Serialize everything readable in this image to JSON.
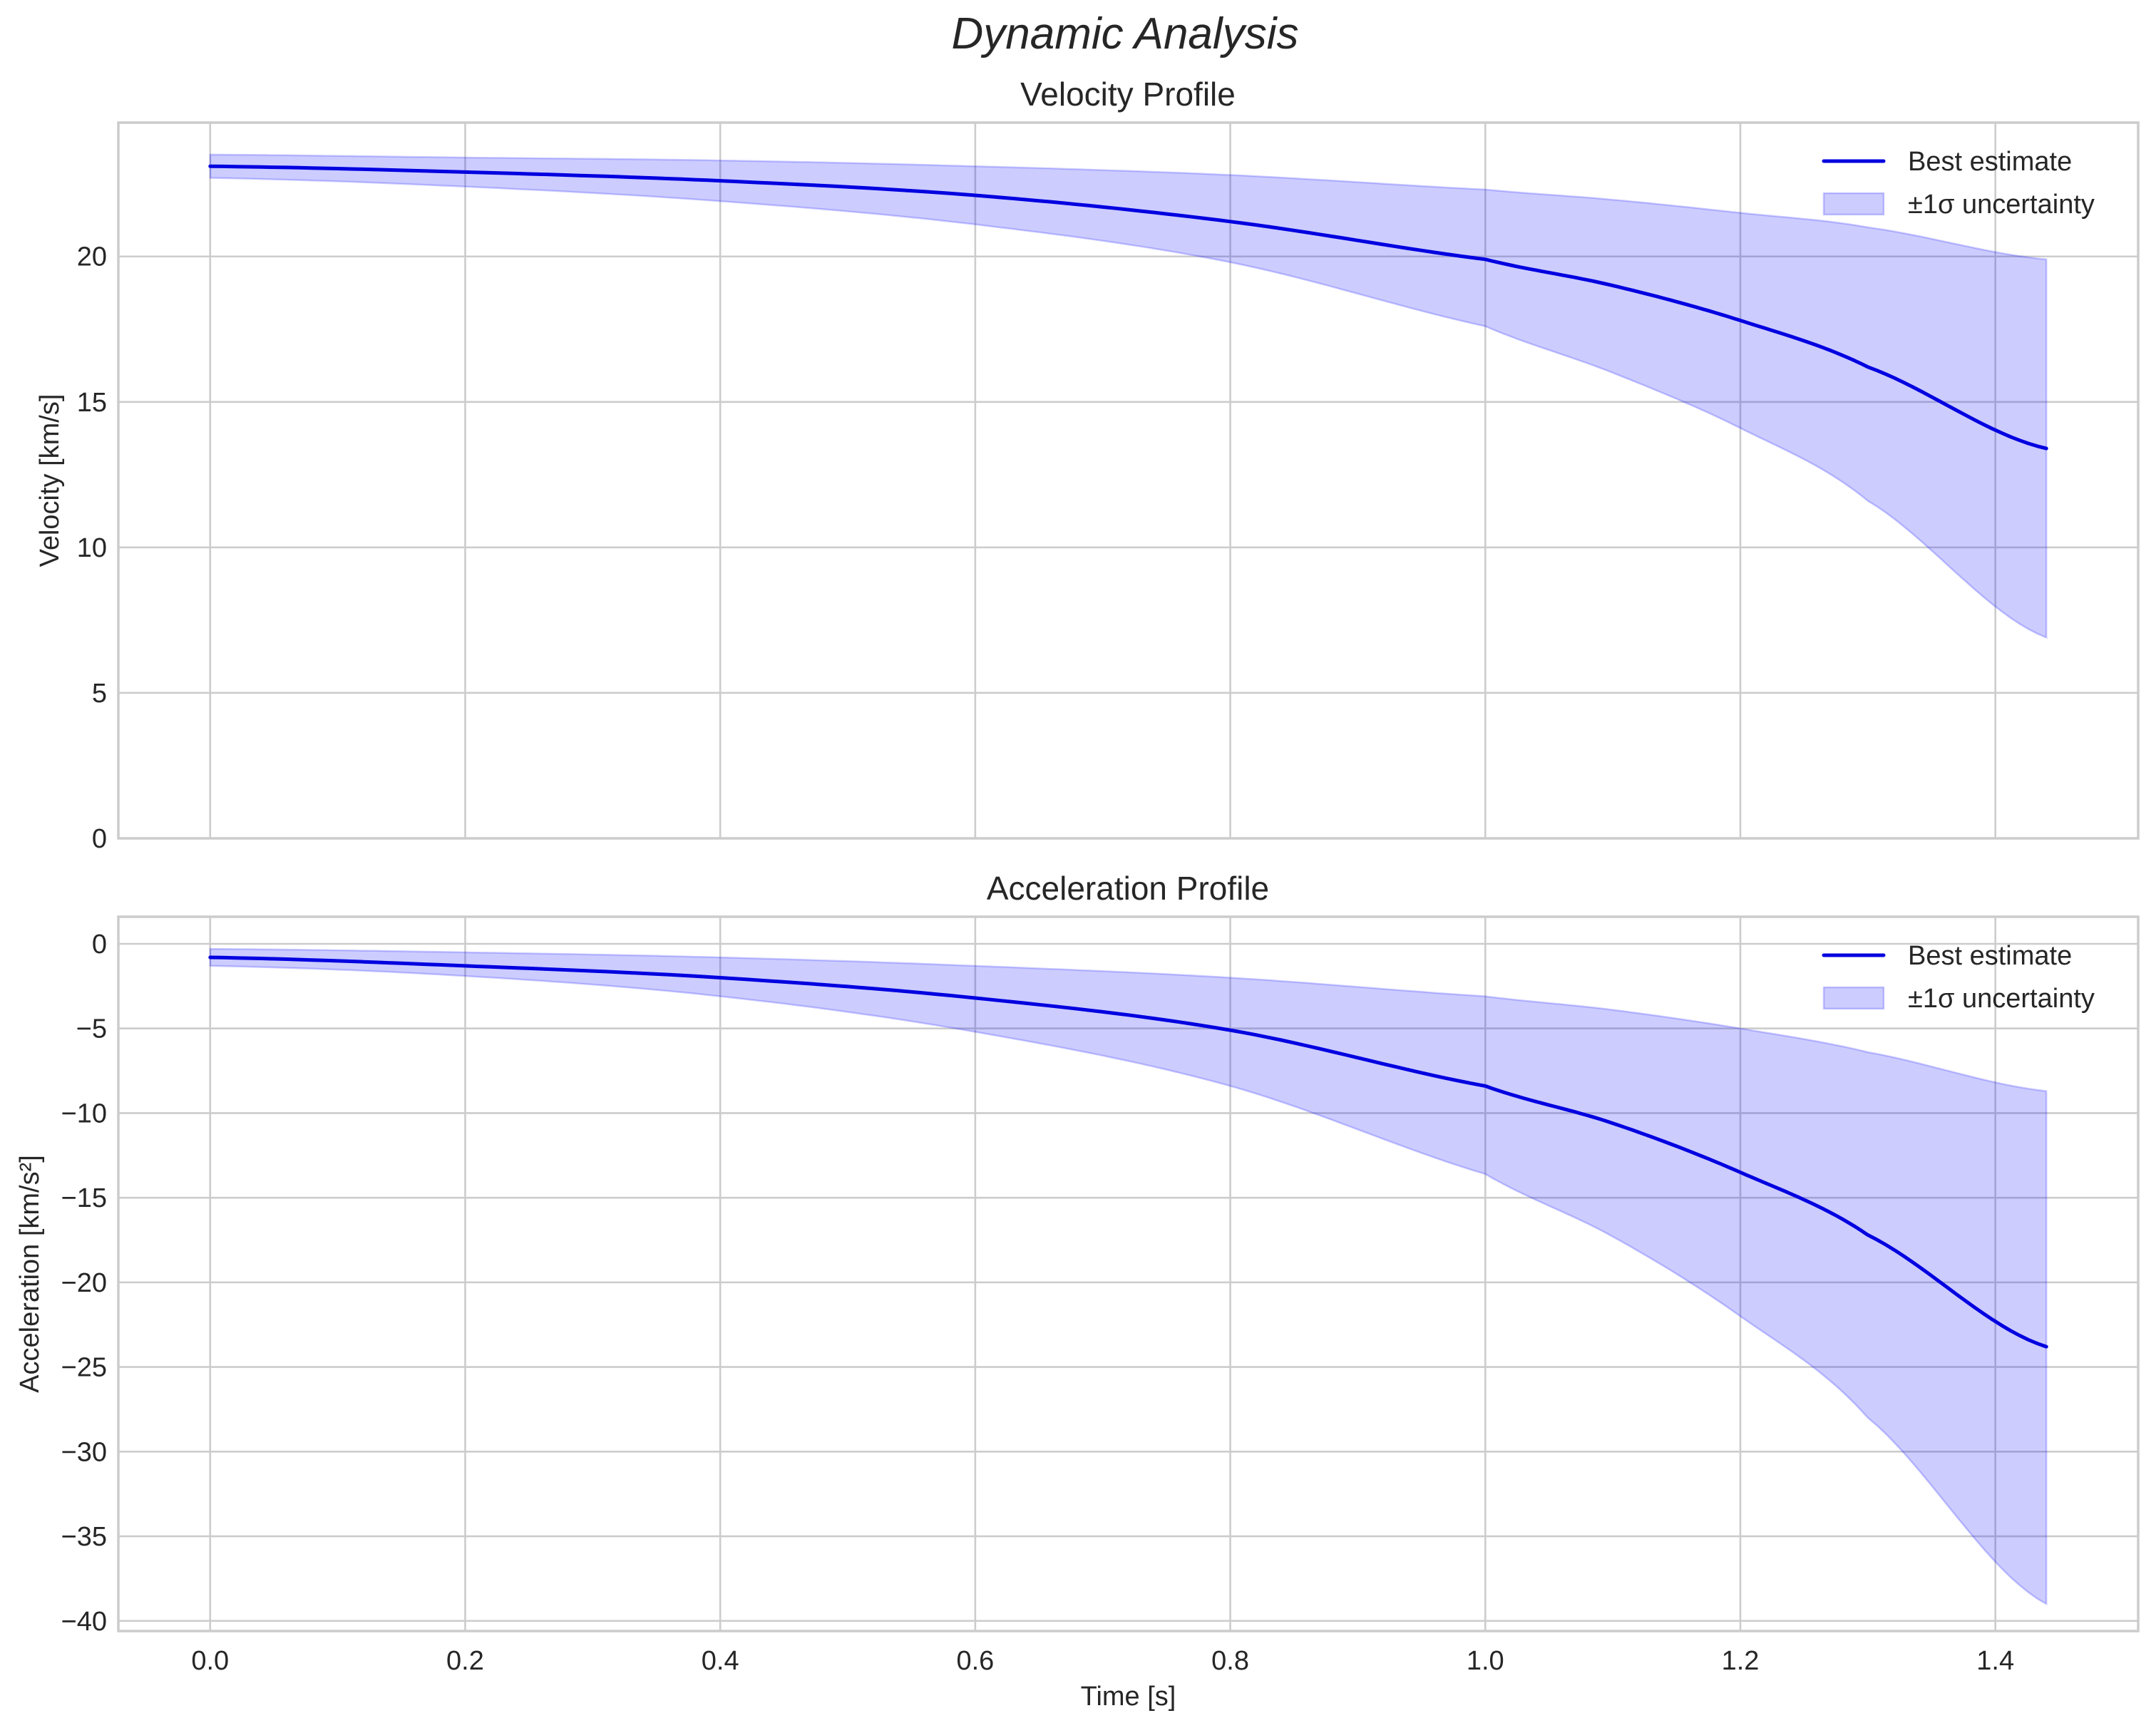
{
  "figure": {
    "suptitle": "Dynamic Analysis",
    "style": "seaborn-whitegrid",
    "colors": {
      "line": "#0000e0",
      "band_fill": "#ccccfb",
      "band_edge": "#9f9ff6",
      "grid": "#cccccc",
      "spine": "#cccccc",
      "text": "#262626"
    }
  },
  "chart_data": [
    {
      "type": "line",
      "title": "Velocity Profile",
      "xlabel": "",
      "ylabel": "Velocity [km/s]",
      "xlim": [
        -0.072,
        1.512
      ],
      "ylim": [
        0,
        24.6
      ],
      "xticks": [
        0.0,
        0.2,
        0.4,
        0.6,
        0.8,
        1.0,
        1.2,
        1.4
      ],
      "xtick_labels_visible": false,
      "yticks": [
        0,
        5,
        10,
        15,
        20
      ],
      "ytick_labels": [
        "0",
        "5",
        "10",
        "15",
        "20"
      ],
      "grid": true,
      "legend": {
        "position": "upper right",
        "entries": [
          "Best estimate",
          "±1σ uncertainty"
        ]
      },
      "x": [
        0.0,
        0.2,
        0.4,
        0.6,
        0.8,
        1.0,
        1.1,
        1.2,
        1.3,
        1.44
      ],
      "series": [
        {
          "name": "Best estimate",
          "kind": "line",
          "values": [
            23.1,
            22.9,
            22.6,
            22.1,
            21.2,
            19.9,
            19.0,
            17.8,
            16.2,
            13.4
          ]
        },
        {
          "name": "±1σ uncertainty (upper)",
          "kind": "band_upper",
          "values": [
            23.5,
            23.4,
            23.3,
            23.1,
            22.8,
            22.3,
            21.95,
            21.5,
            21.0,
            19.9
          ]
        },
        {
          "name": "±1σ uncertainty (lower)",
          "kind": "band_lower",
          "values": [
            22.7,
            22.4,
            21.9,
            21.1,
            19.8,
            17.6,
            16.0,
            14.1,
            11.6,
            6.9
          ]
        }
      ]
    },
    {
      "type": "line",
      "title": "Acceleration Profile",
      "xlabel": "Time [s]",
      "ylabel": "Acceleration [km/s²]",
      "xlim": [
        -0.072,
        1.512
      ],
      "ylim": [
        -40.6,
        1.6
      ],
      "xticks": [
        0.0,
        0.2,
        0.4,
        0.6,
        0.8,
        1.0,
        1.2,
        1.4
      ],
      "xtick_labels": [
        "0.0",
        "0.2",
        "0.4",
        "0.6",
        "0.8",
        "1.0",
        "1.2",
        "1.4"
      ],
      "yticks": [
        0,
        -5,
        -10,
        -15,
        -20,
        -25,
        -30,
        -35,
        -40
      ],
      "ytick_labels": [
        "0",
        "−5",
        "−10",
        "−15",
        "−20",
        "−25",
        "−30",
        "−35",
        "−40"
      ],
      "grid": true,
      "legend": {
        "position": "upper right",
        "entries": [
          "Best estimate",
          "±1σ uncertainty"
        ]
      },
      "x": [
        0.0,
        0.2,
        0.4,
        0.6,
        0.8,
        1.0,
        1.1,
        1.2,
        1.3,
        1.44
      ],
      "series": [
        {
          "name": "Best estimate",
          "kind": "line",
          "values": [
            -0.8,
            -1.3,
            -2.0,
            -3.2,
            -5.1,
            -8.4,
            -10.6,
            -13.5,
            -17.2,
            -23.8
          ]
        },
        {
          "name": "±1σ uncertainty (upper)",
          "kind": "band_upper",
          "values": [
            -0.3,
            -0.5,
            -0.8,
            -1.3,
            -2.0,
            -3.1,
            -3.9,
            -5.0,
            -6.4,
            -8.7
          ]
        },
        {
          "name": "±1σ uncertainty (lower)",
          "kind": "band_lower",
          "values": [
            -1.3,
            -1.9,
            -3.1,
            -5.2,
            -8.4,
            -13.6,
            -17.3,
            -22.0,
            -28.0,
            -39.0
          ]
        }
      ]
    }
  ]
}
